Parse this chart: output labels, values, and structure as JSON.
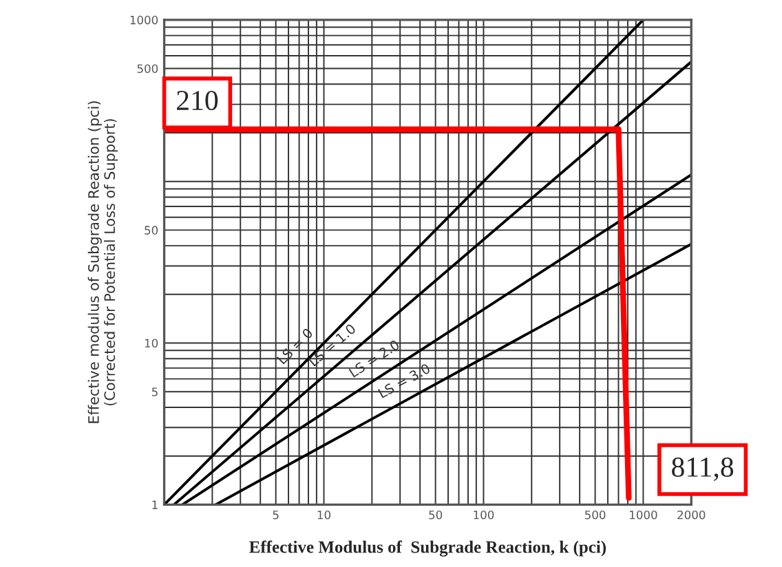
{
  "chart_data": {
    "type": "line",
    "xlabel": "Effective Modulus of  Subgrade Reaction, k (pci)",
    "ylabel": "Effective modulus of Subgrade Reaction (pci)\n(Corrected for Potential Loss of Support)",
    "log": "xy",
    "grid": true,
    "legend": false,
    "xlim": [
      1,
      2000
    ],
    "ylim": [
      1,
      1000
    ],
    "xticks": [
      {
        "value": 2,
        "label": null
      },
      {
        "value": 3,
        "label": null
      },
      {
        "value": 4,
        "label": null
      },
      5,
      {
        "value": 6,
        "label": null
      },
      {
        "value": 7,
        "label": null
      },
      {
        "value": 8,
        "label": null
      },
      {
        "value": 9,
        "label": null
      },
      10,
      {
        "value": 20,
        "label": null
      },
      {
        "value": 30,
        "label": null
      },
      {
        "value": 40,
        "label": null
      },
      50,
      {
        "value": 60,
        "label": null
      },
      {
        "value": 70,
        "label": null
      },
      {
        "value": 80,
        "label": null
      },
      {
        "value": 90,
        "label": null
      },
      100,
      {
        "value": 200,
        "label": null
      },
      {
        "value": 300,
        "label": null
      },
      {
        "value": 400,
        "label": null
      },
      500,
      {
        "value": 600,
        "label": null
      },
      {
        "value": 700,
        "label": null
      },
      {
        "value": 800,
        "label": null
      },
      {
        "value": 900,
        "label": null
      },
      1000,
      2000
    ],
    "yticks": [
      1,
      {
        "value": 2,
        "label": null
      },
      {
        "value": 3,
        "label": null
      },
      {
        "value": 4,
        "label": null
      },
      5,
      {
        "value": 6,
        "label": null
      },
      {
        "value": 7,
        "label": null
      },
      {
        "value": 8,
        "label": null
      },
      {
        "value": 9,
        "label": null
      },
      10,
      {
        "value": 20,
        "label": null
      },
      {
        "value": 30,
        "label": null
      },
      {
        "value": 40,
        "label": null
      },
      50,
      {
        "value": 60,
        "label": null
      },
      {
        "value": 70,
        "label": null
      },
      {
        "value": 80,
        "label": null
      },
      {
        "value": 90,
        "label": null
      },
      {
        "value": 100,
        "label": null
      },
      {
        "value": 200,
        "label": null
      },
      {
        "value": 300,
        "label": null
      },
      {
        "value": 400,
        "label": null
      },
      500,
      {
        "value": 600,
        "label": null
      },
      {
        "value": 700,
        "label": null
      },
      {
        "value": 800,
        "label": null
      },
      {
        "value": 900,
        "label": null
      },
      1000
    ],
    "series": [
      {
        "name": "LS = 0",
        "color": "#000000",
        "x": [
          1,
          1000
        ],
        "values": [
          1,
          1000
        ]
      },
      {
        "name": "LS = 1.0",
        "color": "#000000",
        "x": [
          1.15,
          2000
        ],
        "values": [
          1,
          550
        ]
      },
      {
        "name": "LS = 2.0",
        "color": "#000000",
        "x": [
          1.3,
          2000
        ],
        "values": [
          1,
          110
        ]
      },
      {
        "name": "LS = 3.0",
        "color": "#000000",
        "x": [
          2.1,
          2000
        ],
        "values": [
          1,
          41
        ]
      },
      {
        "color": "#ff0000",
        "x": [
          1,
          700,
          811.8
        ],
        "values": [
          210,
          210,
          1.1
        ]
      }
    ],
    "annotations": [
      {
        "text": "210",
        "x": 1,
        "y": 210
      },
      {
        "text": "811,8",
        "x": 811.8,
        "y": 1.1
      }
    ]
  }
}
